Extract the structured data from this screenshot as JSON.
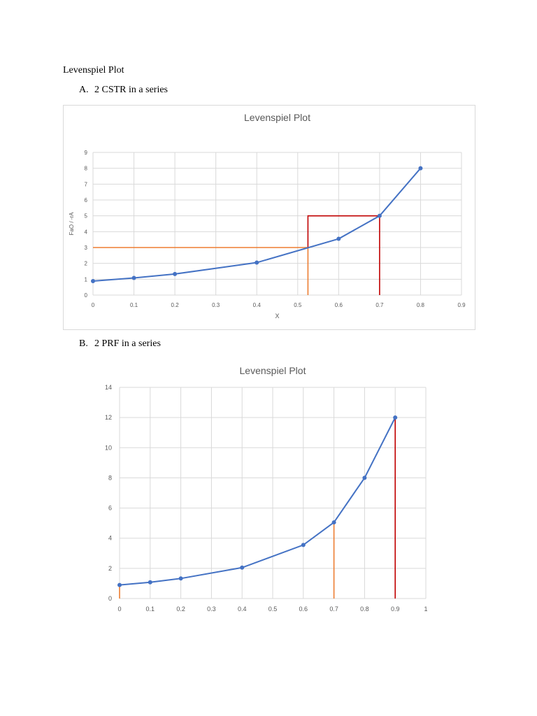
{
  "document": {
    "title": "Levenspiel Plot",
    "section_a": {
      "marker": "A.",
      "label": "2 CSTR in a series"
    },
    "section_b": {
      "marker": "B.",
      "label": "2 PRF in a series"
    }
  },
  "colors": {
    "series": "#4472C4",
    "orange": "#ED7D31",
    "red": "#C00000",
    "grid": "#d9d9d9",
    "axis_text": "#595959"
  },
  "chart_data": [
    {
      "type": "line",
      "title": "Levenspiel Plot",
      "xlabel": "X",
      "ylabel": "FaO / -rA",
      "xlim": [
        0,
        0.9
      ],
      "ylim": [
        0,
        9
      ],
      "xticks": [
        "0",
        "0.1",
        "0.2",
        "0.3",
        "0.4",
        "0.5",
        "0.6",
        "0.7",
        "0.8",
        "0.9"
      ],
      "yticks": [
        "0",
        "1",
        "2",
        "3",
        "4",
        "5",
        "6",
        "7",
        "8",
        "9"
      ],
      "grid": true,
      "legend": false,
      "series": [
        {
          "x": [
            0,
            0.1,
            0.2,
            0.4,
            0.6,
            0.7,
            0.8
          ],
          "y": [
            0.88,
            1.08,
            1.33,
            2.05,
            3.55,
            5.0,
            8.0
          ]
        }
      ],
      "guides": [
        {
          "color": "orange",
          "points": [
            [
              0,
              3.0
            ],
            [
              0.525,
              3.0
            ]
          ]
        },
        {
          "color": "orange",
          "points": [
            [
              0.525,
              3.0
            ],
            [
              0.525,
              0
            ]
          ]
        },
        {
          "color": "red",
          "points": [
            [
              0.525,
              3.0
            ],
            [
              0.525,
              5.0
            ],
            [
              0.7,
              5.0
            ]
          ]
        },
        {
          "color": "red",
          "points": [
            [
              0.7,
              5.0
            ],
            [
              0.7,
              0
            ]
          ]
        }
      ]
    },
    {
      "type": "line",
      "title": "Levenspiel Plot",
      "xlabel": "",
      "ylabel": "",
      "xlim": [
        0,
        1
      ],
      "ylim": [
        0,
        14
      ],
      "xticks": [
        "0",
        "0.1",
        "0.2",
        "0.3",
        "0.4",
        "0.5",
        "0.6",
        "0.7",
        "0.8",
        "0.9",
        "1"
      ],
      "yticks": [
        "0",
        "2",
        "4",
        "6",
        "8",
        "10",
        "12",
        "14"
      ],
      "grid": true,
      "legend": false,
      "series": [
        {
          "x": [
            0,
            0.1,
            0.2,
            0.4,
            0.6,
            0.7,
            0.8,
            0.9
          ],
          "y": [
            0.9,
            1.08,
            1.33,
            2.05,
            3.55,
            5.05,
            8.0,
            12.0
          ]
        }
      ],
      "guides": [
        {
          "color": "orange",
          "points": [
            [
              0,
              0.9
            ],
            [
              0,
              0
            ]
          ]
        },
        {
          "color": "orange",
          "points": [
            [
              0.7,
              5.05
            ],
            [
              0.7,
              0
            ]
          ]
        },
        {
          "color": "red",
          "points": [
            [
              0.9,
              12.0
            ],
            [
              0.9,
              0
            ]
          ]
        }
      ]
    }
  ]
}
